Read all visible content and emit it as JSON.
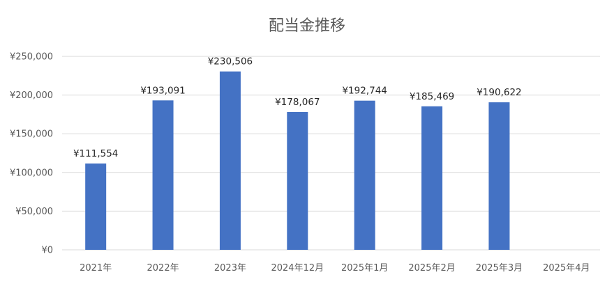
{
  "chart_data": {
    "type": "bar",
    "title": "配当金推移",
    "xlabel": "",
    "ylabel": "",
    "categories": [
      "2021年",
      "2022年",
      "2023年",
      "2024年12月",
      "2025年1月",
      "2025年2月",
      "2025年3月",
      "2025年4月"
    ],
    "values": [
      111554,
      193091,
      230506,
      178067,
      192744,
      185469,
      190622,
      null
    ],
    "data_labels": [
      "¥111,554",
      "¥193,091",
      "¥230,506",
      "¥178,067",
      "¥192,744",
      "¥185,469",
      "¥190,622",
      ""
    ],
    "y_ticks": [
      0,
      50000,
      100000,
      150000,
      200000,
      250000
    ],
    "y_tick_labels": [
      "¥0",
      "¥50,000",
      "¥100,000",
      "¥150,000",
      "¥200,000",
      "¥250,000"
    ],
    "ylim": [
      0,
      250000
    ],
    "grid": true,
    "legend": "none",
    "bar_color": "#4472C4",
    "grid_color": "#D9D9D9"
  }
}
